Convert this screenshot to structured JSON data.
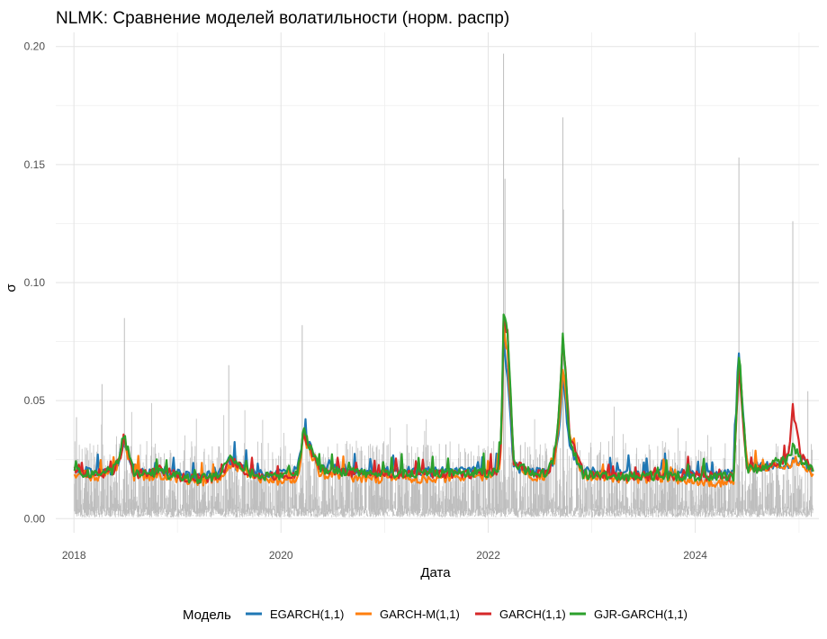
{
  "chart_data": {
    "type": "line",
    "title": "NLMK: Сравнение моделей волатильности (норм. распр)",
    "xlabel": "Дата",
    "ylabel": "σ",
    "x_range": [
      "2017-10-29",
      "2025-03-12"
    ],
    "ylim": [
      -0.006,
      0.206
    ],
    "x_ticks": [
      "2018",
      "2020",
      "2022",
      "2024"
    ],
    "y_ticks": [
      "0.00",
      "0.05",
      "0.10",
      "0.15",
      "0.20"
    ],
    "grid": true,
    "legend": {
      "title": "Модель",
      "position": "bottom",
      "entries": [
        "EGARCH(1,1)",
        "GARCH-M(1,1)",
        "GARCH(1,1)",
        "GJR-GARCH(1,1)"
      ]
    },
    "colors": {
      "EGARCH(1,1)": "#1f77b4",
      "GARCH-M(1,1)": "#ff7f0e",
      "GARCH(1,1)": "#d62728",
      "GJR-GARCH(1,1)": "#2ca02c",
      "abs_returns": "#bebebe"
    },
    "series": [
      {
        "name": "EGARCH(1,1)",
        "color": "#1f77b4",
        "x": [
          "2018-01-03",
          "2018-03-01",
          "2018-06-25",
          "2018-08-01",
          "2018-10-20",
          "2019-02-01",
          "2019-07-01",
          "2019-10-01",
          "2020-01-15",
          "2020-03-18",
          "2020-05-15",
          "2020-11-01",
          "2021-04-01",
          "2021-09-01",
          "2022-01-15",
          "2022-02-24",
          "2022-03-10",
          "2022-04-01",
          "2022-06-01",
          "2022-09-21",
          "2022-10-15",
          "2022-12-01",
          "2023-04-01",
          "2023-09-01",
          "2024-01-01",
          "2024-05-15",
          "2024-06-03",
          "2024-07-01",
          "2024-10-01",
          "2024-12-10",
          "2025-01-10",
          "2025-02-20"
        ],
        "y": [
          0.021,
          0.02,
          0.033,
          0.02,
          0.021,
          0.018,
          0.024,
          0.019,
          0.02,
          0.037,
          0.022,
          0.02,
          0.02,
          0.02,
          0.021,
          0.078,
          0.06,
          0.022,
          0.02,
          0.06,
          0.03,
          0.02,
          0.019,
          0.019,
          0.019,
          0.02,
          0.071,
          0.022,
          0.023,
          0.024,
          0.025,
          0.02
        ]
      },
      {
        "name": "GARCH-M(1,1)",
        "color": "#ff7f0e",
        "x": [
          "2018-01-03",
          "2018-03-01",
          "2018-06-25",
          "2018-08-01",
          "2018-10-20",
          "2019-02-01",
          "2019-07-01",
          "2019-10-01",
          "2020-01-15",
          "2020-03-18",
          "2020-05-15",
          "2020-11-01",
          "2021-04-01",
          "2021-09-01",
          "2022-01-15",
          "2022-02-24",
          "2022-03-10",
          "2022-04-01",
          "2022-06-01",
          "2022-09-21",
          "2022-10-15",
          "2022-12-01",
          "2023-04-01",
          "2023-09-01",
          "2024-01-01",
          "2024-05-15",
          "2024-06-03",
          "2024-07-01",
          "2024-10-01",
          "2024-12-10",
          "2025-01-10",
          "2025-02-20"
        ],
        "y": [
          0.019,
          0.018,
          0.032,
          0.018,
          0.019,
          0.016,
          0.023,
          0.017,
          0.016,
          0.035,
          0.019,
          0.017,
          0.017,
          0.018,
          0.019,
          0.082,
          0.07,
          0.024,
          0.018,
          0.065,
          0.035,
          0.018,
          0.017,
          0.017,
          0.016,
          0.015,
          0.068,
          0.021,
          0.022,
          0.025,
          0.024,
          0.019
        ]
      },
      {
        "name": "GARCH(1,1)",
        "color": "#d62728",
        "x": [
          "2018-01-03",
          "2018-03-01",
          "2018-06-25",
          "2018-08-01",
          "2018-10-20",
          "2019-02-01",
          "2019-07-01",
          "2019-10-01",
          "2020-01-15",
          "2020-03-18",
          "2020-05-15",
          "2020-11-01",
          "2021-04-01",
          "2021-09-01",
          "2022-01-15",
          "2022-02-24",
          "2022-03-10",
          "2022-04-01",
          "2022-06-01",
          "2022-09-21",
          "2022-10-15",
          "2022-12-01",
          "2023-04-01",
          "2023-09-01",
          "2024-01-01",
          "2024-05-15",
          "2024-06-03",
          "2024-07-01",
          "2024-10-01",
          "2024-12-10",
          "2025-01-10",
          "2025-02-20"
        ],
        "y": [
          0.02,
          0.019,
          0.034,
          0.019,
          0.021,
          0.017,
          0.025,
          0.018,
          0.018,
          0.036,
          0.021,
          0.019,
          0.019,
          0.019,
          0.02,
          0.086,
          0.078,
          0.025,
          0.019,
          0.078,
          0.036,
          0.019,
          0.018,
          0.018,
          0.018,
          0.018,
          0.065,
          0.021,
          0.024,
          0.047,
          0.026,
          0.02
        ]
      },
      {
        "name": "GJR-GARCH(1,1)",
        "color": "#2ca02c",
        "x": [
          "2018-01-03",
          "2018-03-01",
          "2018-06-25",
          "2018-08-01",
          "2018-10-20",
          "2019-02-01",
          "2019-07-01",
          "2019-10-01",
          "2020-01-15",
          "2020-03-18",
          "2020-05-15",
          "2020-11-01",
          "2021-04-01",
          "2021-09-01",
          "2022-01-15",
          "2022-02-24",
          "2022-03-10",
          "2022-04-01",
          "2022-06-01",
          "2022-09-21",
          "2022-10-15",
          "2022-12-01",
          "2023-04-01",
          "2023-09-01",
          "2024-01-01",
          "2024-05-15",
          "2024-06-03",
          "2024-07-01",
          "2024-10-01",
          "2024-12-10",
          "2025-01-10",
          "2025-02-20"
        ],
        "y": [
          0.02,
          0.019,
          0.036,
          0.019,
          0.02,
          0.017,
          0.026,
          0.018,
          0.018,
          0.038,
          0.021,
          0.019,
          0.019,
          0.019,
          0.02,
          0.087,
          0.08,
          0.024,
          0.019,
          0.079,
          0.033,
          0.019,
          0.018,
          0.018,
          0.018,
          0.018,
          0.07,
          0.021,
          0.024,
          0.03,
          0.025,
          0.02
        ]
      }
    ],
    "background_series": {
      "color": "#bebebe",
      "spikes_x": [
        "2018-01-10",
        "2018-04-10",
        "2018-06-28",
        "2019-07-01",
        "2020-03-16",
        "2022-02-24",
        "2022-03-01",
        "2022-09-21",
        "2022-09-23",
        "2023-03-15",
        "2024-06-03",
        "2024-12-10",
        "2025-02-01"
      ],
      "spikes_y": [
        0.043,
        0.057,
        0.085,
        0.065,
        0.082,
        0.197,
        0.144,
        0.17,
        0.131,
        0.035,
        0.153,
        0.126,
        0.054
      ]
    }
  }
}
